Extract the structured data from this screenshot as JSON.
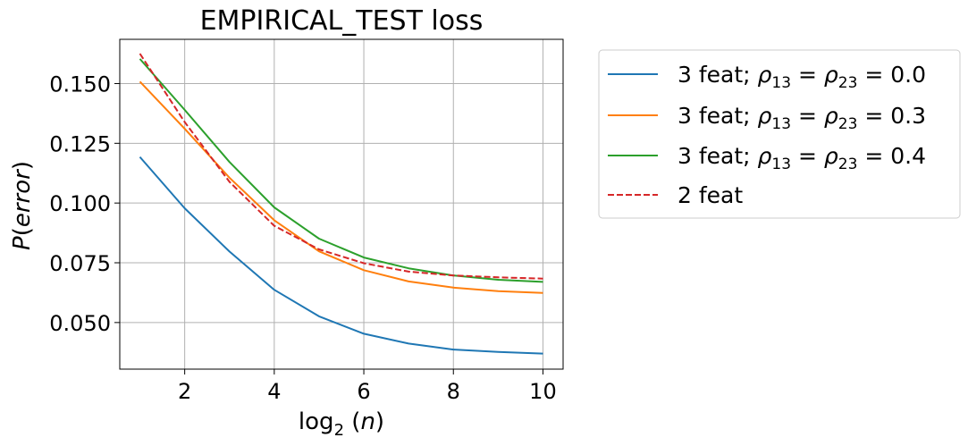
{
  "chart_data": {
    "type": "line",
    "title": "EMPIRICAL_TEST loss",
    "xlabel": {
      "prefix": "log",
      "sub": "2",
      "suffix": " (",
      "italic": "n",
      "close": ")"
    },
    "ylabel": {
      "p": "P",
      "open": "(",
      "italic": "error",
      "close": ")"
    },
    "xlim": [
      0.55,
      10.45
    ],
    "ylim": [
      0.0305,
      0.1685
    ],
    "xticks": [
      2,
      4,
      6,
      8,
      10
    ],
    "xtick_labels": [
      "2",
      "4",
      "6",
      "8",
      "10"
    ],
    "yticks": [
      0.05,
      0.075,
      0.1,
      0.125,
      0.15
    ],
    "ytick_labels": [
      "0.050",
      "0.075",
      "0.100",
      "0.125",
      "0.150"
    ],
    "grid": true,
    "legend_position": "outside-right",
    "x": [
      1,
      2,
      3,
      4,
      5,
      6,
      7,
      8,
      9,
      10
    ],
    "series": [
      {
        "name": "3 feat; ρ13 = ρ23 = 0.0",
        "legend": {
          "pre": "3 feat; ",
          "rho1": "ρ",
          "sub1": "13",
          "eq1": " = ",
          "rho2": "ρ",
          "sub2": "23",
          "post": " = 0.0"
        },
        "color": "#1f77b4",
        "dashed": false,
        "values": [
          0.1193,
          0.0978,
          0.0797,
          0.0637,
          0.0526,
          0.0453,
          0.0412,
          0.0387,
          0.0377,
          0.037
        ]
      },
      {
        "name": "3 feat; ρ13 = ρ23 = 0.3",
        "legend": {
          "pre": "3 feat; ",
          "rho1": "ρ",
          "sub1": "13",
          "eq1": " = ",
          "rho2": "ρ",
          "sub2": "23",
          "post": " = 0.3"
        },
        "color": "#ff7f0e",
        "dashed": false,
        "values": [
          0.1508,
          0.1311,
          0.1106,
          0.0928,
          0.0798,
          0.0719,
          0.0672,
          0.0646,
          0.0631,
          0.0624
        ]
      },
      {
        "name": "3 feat; ρ13 = ρ23 = 0.4",
        "legend": {
          "pre": "3 feat; ",
          "rho1": "ρ",
          "sub1": "13",
          "eq1": " = ",
          "rho2": "ρ",
          "sub2": "23",
          "post": " = 0.4"
        },
        "color": "#2ca02c",
        "dashed": false,
        "values": [
          0.1603,
          0.139,
          0.1172,
          0.0982,
          0.0851,
          0.0772,
          0.0727,
          0.0697,
          0.0679,
          0.067
        ]
      },
      {
        "name": "2 feat",
        "legend": {
          "pre": "2 feat"
        },
        "color": "#d62728",
        "dashed": true,
        "values": [
          0.1625,
          0.1339,
          0.1089,
          0.0905,
          0.0806,
          0.0748,
          0.0713,
          0.0697,
          0.0689,
          0.0684
        ]
      }
    ]
  }
}
